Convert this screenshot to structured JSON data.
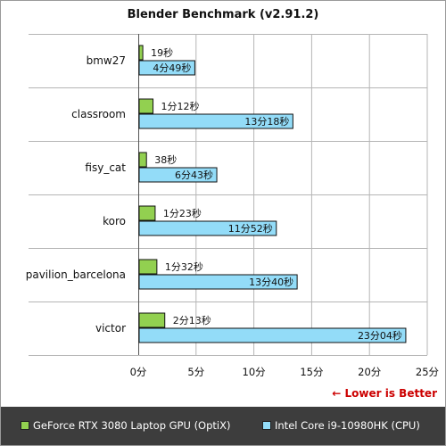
{
  "chart_data": {
    "type": "bar",
    "orientation": "horizontal",
    "title": "Blender Benchmark (v2.91.2)",
    "xlabel": "",
    "ylabel": "",
    "unit": "分",
    "categories": [
      "bmw27",
      "classroom",
      "fisy_cat",
      "koro",
      "pavilion_barcelona",
      "victor"
    ],
    "series": [
      {
        "name": "GeForce RTX 3080 Laptop GPU (OptiX)",
        "color": "#92d050",
        "values": [
          0.3167,
          1.2,
          0.6333,
          1.3833,
          1.5333,
          2.2167
        ],
        "labels": [
          "19秒",
          "1分12秒",
          "38秒",
          "1分23秒",
          "1分32秒",
          "2分13秒"
        ]
      },
      {
        "name": "Intel Core i9-10980HK (CPU)",
        "color": "#93dcf8",
        "values": [
          4.8167,
          13.3,
          6.7167,
          11.8667,
          13.6667,
          23.0667
        ],
        "labels": [
          "4分49秒",
          "13分18秒",
          "6分43秒",
          "11分52秒",
          "13分40秒",
          "23分04秒"
        ]
      }
    ],
    "xlim": [
      0,
      25
    ],
    "xticks": [
      0,
      5,
      10,
      15,
      20,
      25
    ],
    "xtick_labels": [
      "0分",
      "5分",
      "10分",
      "15分",
      "20分",
      "25分"
    ],
    "annotation": "← Lower is Better",
    "annotation_color": "#cc0000",
    "grid": true,
    "legend_position": "bottom"
  }
}
